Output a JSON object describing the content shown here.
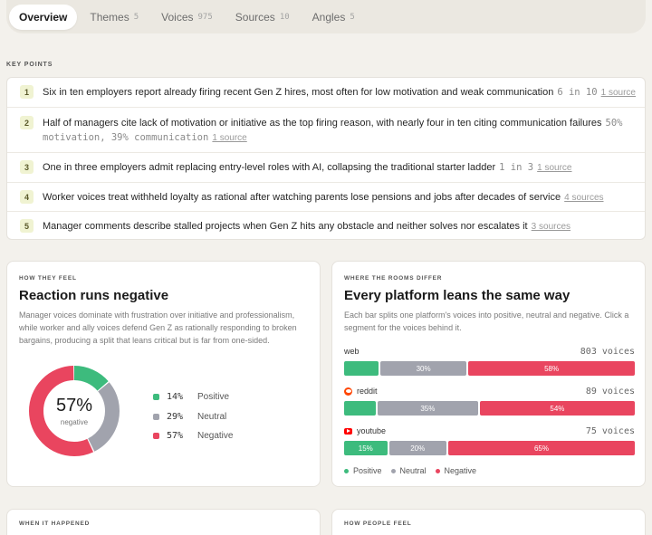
{
  "tabs": [
    {
      "label": "Overview",
      "count": ""
    },
    {
      "label": "Themes",
      "count": "5"
    },
    {
      "label": "Voices",
      "count": "975"
    },
    {
      "label": "Sources",
      "count": "10"
    },
    {
      "label": "Angles",
      "count": "5"
    }
  ],
  "key_points": {
    "label": "KEY POINTS",
    "items": [
      {
        "num": "1",
        "text": "Six in ten employers report already firing recent Gen Z hires, most often for low motivation and weak communication",
        "stat": "6 in 10",
        "source": "1 source"
      },
      {
        "num": "2",
        "text": "Half of managers cite lack of motivation or initiative as the top firing reason, with nearly four in ten citing communication failures",
        "stat": "50% motivation, 39% communication",
        "source": "1 source"
      },
      {
        "num": "3",
        "text": "One in three employers admit replacing entry-level roles with AI, collapsing the traditional starter ladder",
        "stat": "1 in 3",
        "source": "1 source"
      },
      {
        "num": "4",
        "text": "Worker voices treat withheld loyalty as rational after watching parents lose pensions and jobs after decades of service",
        "stat": "",
        "source": "4 sources"
      },
      {
        "num": "5",
        "text": "Manager comments describe stalled projects when Gen Z hits any obstacle and neither solves nor escalates it",
        "stat": "",
        "source": "3 sources"
      }
    ]
  },
  "feel": {
    "label": "HOW THEY FEEL",
    "title": "Reaction runs negative",
    "desc": "Manager voices dominate with frustration over initiative and professionalism, while worker and ally voices defend Gen Z as rationally responding to broken bargains, producing a split that leans critical but is far from one-sided.",
    "center_pct": "57%",
    "center_label": "negative",
    "legend": [
      {
        "pct": "14%",
        "name": "Positive",
        "value": 14,
        "color": "#3dbb7d"
      },
      {
        "pct": "29%",
        "name": "Neutral",
        "value": 29,
        "color": "#a1a3ad"
      },
      {
        "pct": "57%",
        "name": "Negative",
        "value": 57,
        "color": "#e9455f"
      }
    ]
  },
  "rooms": {
    "label": "WHERE THE ROOMS DIFFER",
    "title": "Every platform leans the same way",
    "desc": "Each bar splits one platform's voices into positive, neutral and negative. Click a segment for the voices behind it.",
    "platforms": [
      {
        "name": "web",
        "icon": "",
        "count": "803 voices",
        "segments": [
          {
            "label": "",
            "value": 12
          },
          {
            "label": "30%",
            "value": 30
          },
          {
            "label": "58%",
            "value": 58
          }
        ]
      },
      {
        "name": "reddit",
        "icon": "reddit-icon",
        "count": "89 voices",
        "segments": [
          {
            "label": "",
            "value": 11
          },
          {
            "label": "35%",
            "value": 35
          },
          {
            "label": "54%",
            "value": 54
          }
        ]
      },
      {
        "name": "youtube",
        "icon": "youtube-icon",
        "count": "75 voices",
        "segments": [
          {
            "label": "15%",
            "value": 15
          },
          {
            "label": "20%",
            "value": 20
          },
          {
            "label": "65%",
            "value": 65
          }
        ]
      }
    ],
    "legend": [
      {
        "name": "Positive",
        "color": "#3dbb7d"
      },
      {
        "name": "Neutral",
        "color": "#a1a3ad"
      },
      {
        "name": "Negative",
        "color": "#e9455f"
      }
    ]
  },
  "bottom": {
    "when_label": "WHEN IT HAPPENED",
    "how_label": "HOW PEOPLE FEEL"
  }
}
